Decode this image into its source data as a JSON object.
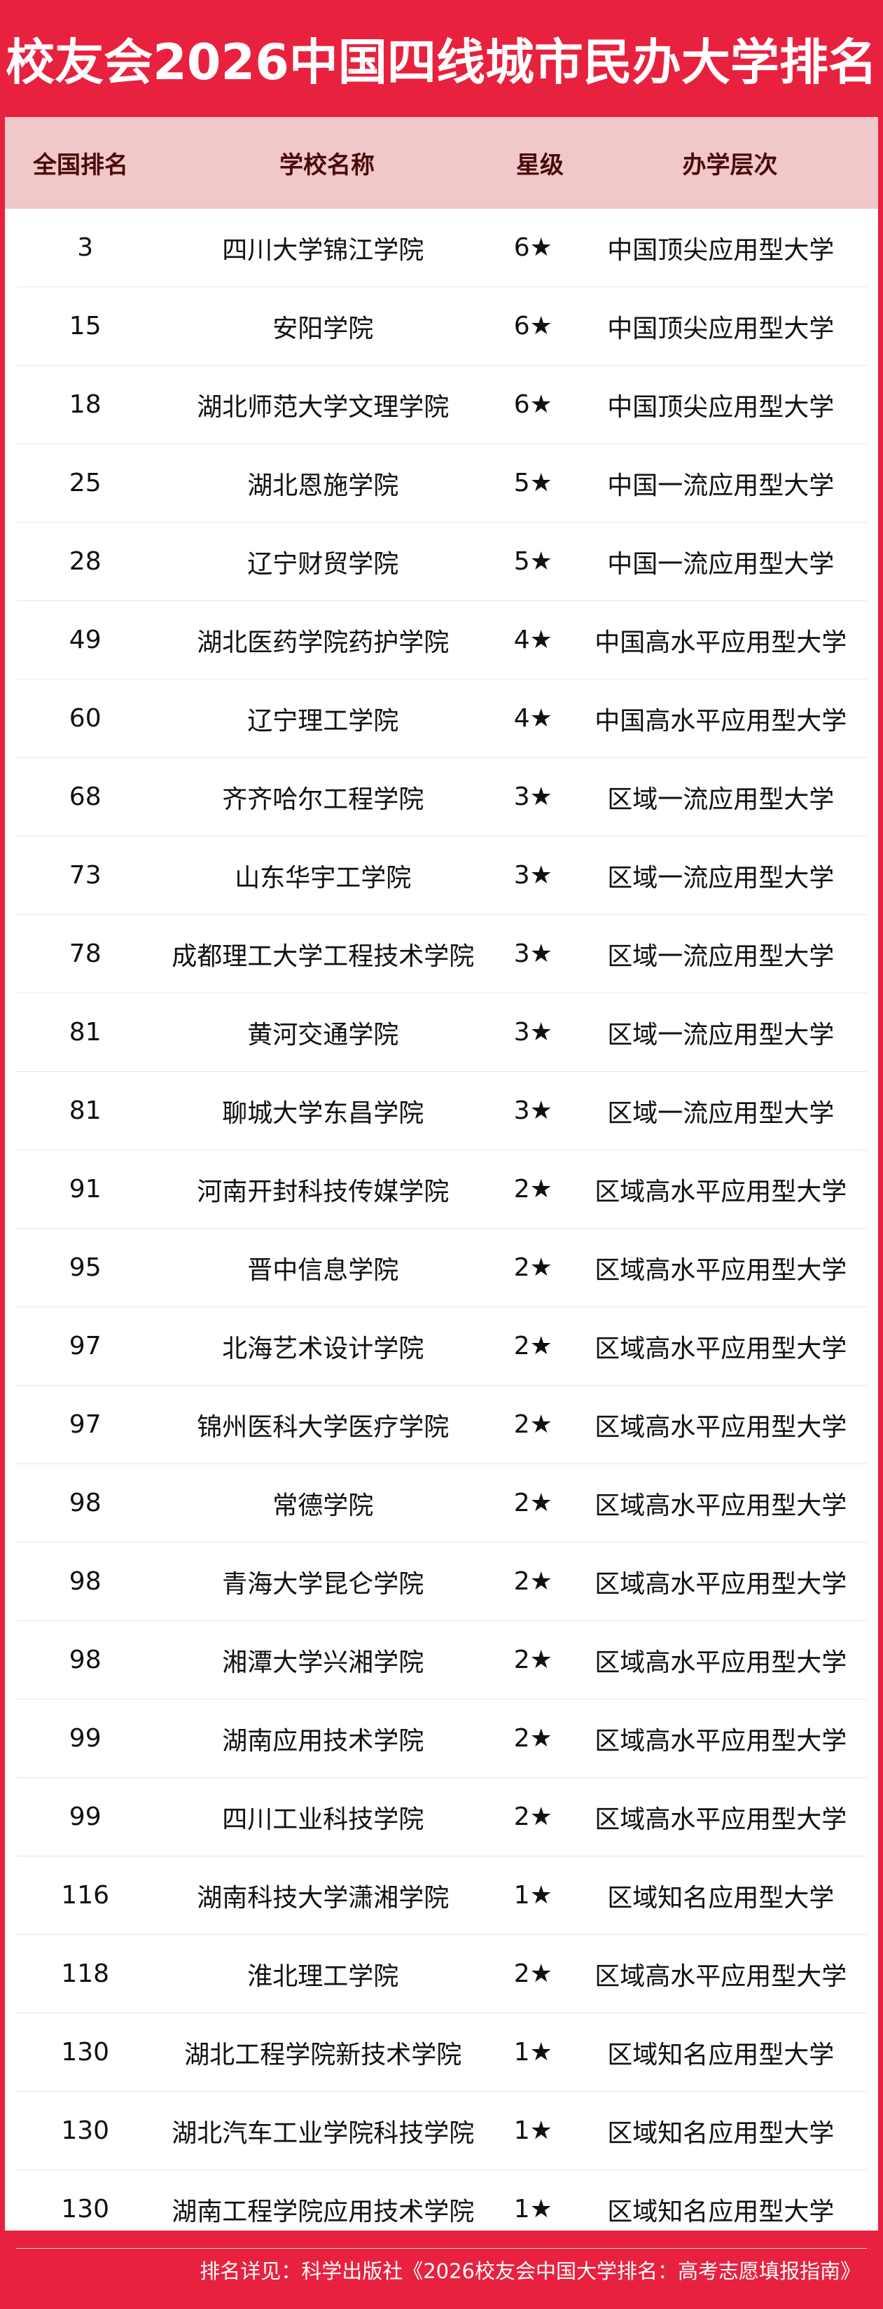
{
  "title": "校友会2026中国四线城市民办大学排名",
  "colors": {
    "accent": "#e8213f",
    "header_bg": "#f0c8ca",
    "header_text": "#4a0a0a"
  },
  "table": {
    "columns": [
      "全国排名",
      "学校名称",
      "星级",
      "办学层次"
    ],
    "rows": [
      [
        "3",
        "四川大学锦江学院",
        "6★",
        "中国顶尖应用型大学"
      ],
      [
        "15",
        "安阳学院",
        "6★",
        "中国顶尖应用型大学"
      ],
      [
        "18",
        "湖北师范大学文理学院",
        "6★",
        "中国顶尖应用型大学"
      ],
      [
        "25",
        "湖北恩施学院",
        "5★",
        "中国一流应用型大学"
      ],
      [
        "28",
        "辽宁财贸学院",
        "5★",
        "中国一流应用型大学"
      ],
      [
        "49",
        "湖北医药学院药护学院",
        "4★",
        "中国高水平应用型大学"
      ],
      [
        "60",
        "辽宁理工学院",
        "4★",
        "中国高水平应用型大学"
      ],
      [
        "68",
        "齐齐哈尔工程学院",
        "3★",
        "区域一流应用型大学"
      ],
      [
        "73",
        "山东华宇工学院",
        "3★",
        "区域一流应用型大学"
      ],
      [
        "78",
        "成都理工大学工程技术学院",
        "3★",
        "区域一流应用型大学"
      ],
      [
        "81",
        "黄河交通学院",
        "3★",
        "区域一流应用型大学"
      ],
      [
        "81",
        "聊城大学东昌学院",
        "3★",
        "区域一流应用型大学"
      ],
      [
        "91",
        "河南开封科技传媒学院",
        "2★",
        "区域高水平应用型大学"
      ],
      [
        "95",
        "晋中信息学院",
        "2★",
        "区域高水平应用型大学"
      ],
      [
        "97",
        "北海艺术设计学院",
        "2★",
        "区域高水平应用型大学"
      ],
      [
        "97",
        "锦州医科大学医疗学院",
        "2★",
        "区域高水平应用型大学"
      ],
      [
        "98",
        "常德学院",
        "2★",
        "区域高水平应用型大学"
      ],
      [
        "98",
        "青海大学昆仑学院",
        "2★",
        "区域高水平应用型大学"
      ],
      [
        "98",
        "湘潭大学兴湘学院",
        "2★",
        "区域高水平应用型大学"
      ],
      [
        "99",
        "湖南应用技术学院",
        "2★",
        "区域高水平应用型大学"
      ],
      [
        "99",
        "四川工业科技学院",
        "2★",
        "区域高水平应用型大学"
      ],
      [
        "116",
        "湖南科技大学潇湘学院",
        "1★",
        "区域知名应用型大学"
      ],
      [
        "118",
        "淮北理工学院",
        "2★",
        "区域高水平应用型大学"
      ],
      [
        "130",
        "湖北工程学院新技术学院",
        "1★",
        "区域知名应用型大学"
      ],
      [
        "130",
        "湖北汽车工业学院科技学院",
        "1★",
        "区域知名应用型大学"
      ],
      [
        "130",
        "湖南工程学院应用技术学院",
        "1★",
        "区域知名应用型大学"
      ]
    ]
  },
  "footer": "排名详见：科学出版社《2026校友会中国大学排名：高考志愿填报指南》"
}
